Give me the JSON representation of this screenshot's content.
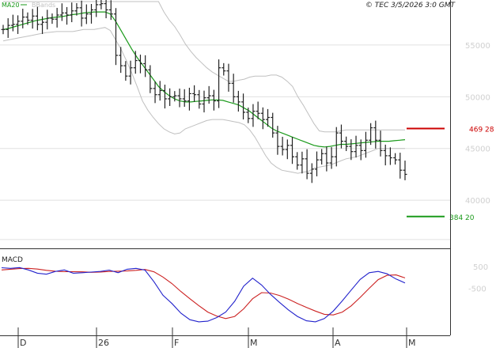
{
  "header": {
    "legend": [
      {
        "label": "MA20",
        "color": "#1a9a1a"
      },
      {
        "label": "BBands",
        "color": "#c0c0c0"
      }
    ],
    "copyright": "© TEC 3/5/2026 3:0 GMT"
  },
  "macd_panel": {
    "label": "MACD",
    "ticks": [
      "500",
      "-500"
    ]
  },
  "colors": {
    "price_bar": "#222222",
    "ma20": "#1a9a1a",
    "bbands": "#c0c0c0",
    "grid": "#e0e0e0",
    "macd_line": "#2222cc",
    "signal_line": "#cc2222",
    "resistance": "#cc0000",
    "support": "#1a9a1a"
  },
  "chart_data": [
    {
      "type": "ohlc",
      "y_ticks": [
        "55000",
        "50000",
        "45000",
        "40000"
      ],
      "ylim": [
        35500,
        59200
      ],
      "x_ticks": [
        "D",
        "26",
        "F",
        "M",
        "A",
        "M"
      ],
      "levels": [
        {
          "name": "resistance",
          "value": 46928,
          "label": "469 28"
        },
        {
          "name": "support",
          "value": 38420,
          "label": "384 20"
        }
      ],
      "closes": [
        56500,
        56900,
        57000,
        57300,
        57700,
        57400,
        57800,
        57000,
        57200,
        57600,
        57500,
        57900,
        58100,
        57900,
        58300,
        58600,
        57600,
        58000,
        58400,
        58900,
        59000,
        58400,
        58000,
        54000,
        53000,
        52000,
        52800,
        53500,
        53200,
        52600,
        50800,
        50200,
        50600,
        49800,
        50000,
        50100,
        49800,
        49600,
        50300,
        50200,
        49300,
        49900,
        50100,
        49600,
        52800,
        52500,
        51300,
        50000,
        49500,
        48500,
        47900,
        48600,
        48400,
        47800,
        48000,
        46500,
        45200,
        44900,
        45300,
        44200,
        43400,
        44000,
        42600,
        43000,
        43900,
        44500,
        43600,
        44200,
        46500,
        45700,
        45200,
        44700,
        45300,
        44800,
        45800,
        47000,
        45800,
        44800,
        44300,
        44100,
        43900,
        42900,
        42500
      ],
      "ma20": [
        56500,
        56600,
        56750,
        56900,
        57050,
        57200,
        57350,
        57450,
        57550,
        57650,
        57700,
        57750,
        57850,
        57950,
        58000,
        58100,
        58150,
        58200,
        58200,
        58200,
        58000,
        57300,
        56400,
        55500,
        54600,
        53800,
        53100,
        52400,
        51700,
        51000,
        50500,
        50100,
        49800,
        49600,
        49500,
        49500,
        49550,
        49600,
        49650,
        49700,
        49700,
        49650,
        49500,
        49350,
        49200,
        48900,
        48600,
        48200,
        47800,
        47400,
        47000,
        46700,
        46500,
        46300,
        46100,
        45900,
        45700,
        45500,
        45300,
        45200,
        45150,
        45200,
        45300,
        45400,
        45400,
        45450,
        45500,
        45550,
        45600,
        45650,
        45700,
        45700,
        45700,
        45750,
        45800,
        45850
      ],
      "bb_upper": [
        59200,
        59200,
        59200,
        59200,
        59200,
        59200,
        59200,
        59200,
        59200,
        59200,
        59200,
        59200,
        59200,
        59200,
        59200,
        59200,
        59200,
        59200,
        59200,
        59200,
        59200,
        59200,
        59200,
        59200,
        59200,
        59200,
        59200,
        59200,
        59200,
        59200,
        58200,
        57400,
        56800,
        56000,
        55100,
        54400,
        53800,
        53300,
        52800,
        52400,
        52100,
        51800,
        51500,
        51500,
        51600,
        51700,
        51900,
        52000,
        52000,
        52000,
        52100,
        52100,
        51900,
        51500,
        51000,
        50000,
        49200,
        48300,
        47400,
        46700,
        46600,
        46600,
        46600,
        46700,
        46800,
        46800,
        46800,
        46800,
        46800,
        46800,
        46800,
        46800,
        46800,
        46800,
        46800,
        46800
      ],
      "bb_lower": [
        55400,
        55500,
        55600,
        55700,
        55800,
        55900,
        56000,
        56100,
        56200,
        56250,
        56300,
        56300,
        56300,
        56300,
        56400,
        56500,
        56500,
        56500,
        56600,
        56700,
        56400,
        55500,
        54600,
        53500,
        52300,
        51000,
        49600,
        48700,
        48000,
        47400,
        46900,
        46600,
        46400,
        46500,
        46900,
        47100,
        47300,
        47500,
        47700,
        47800,
        47800,
        47800,
        47700,
        47600,
        47500,
        47300,
        46800,
        46100,
        45200,
        44300,
        43600,
        43200,
        42900,
        42800,
        42700,
        42600,
        42700,
        42800,
        43100,
        43200,
        43300,
        43400,
        43600,
        43800,
        44000,
        44100,
        44200,
        44400,
        44600,
        44800,
        45000,
        45000,
        45000,
        45000,
        45000,
        45000
      ]
    },
    {
      "type": "line",
      "name": "MACD",
      "ylim": [
        -2600,
        1200
      ],
      "series": [
        {
          "name": "macd",
          "values": [
            450,
            420,
            460,
            350,
            200,
            150,
            280,
            350,
            200,
            220,
            250,
            280,
            340,
            220,
            380,
            420,
            340,
            -200,
            -820,
            -1200,
            -1650,
            -1950,
            -2050,
            -2020,
            -1850,
            -1600,
            -1100,
            -400,
            -30,
            -350,
            -780,
            -1150,
            -1500,
            -1800,
            -2000,
            -2050,
            -1900,
            -1550,
            -1080,
            -580,
            -90,
            220,
            280,
            170,
            -70,
            -250
          ]
        },
        {
          "name": "signal",
          "values": [
            350,
            380,
            410,
            420,
            390,
            330,
            290,
            270,
            270,
            260,
            240,
            250,
            280,
            290,
            300,
            330,
            370,
            260,
            20,
            -280,
            -650,
            -980,
            -1300,
            -1600,
            -1780,
            -1900,
            -1800,
            -1450,
            -980,
            -700,
            -720,
            -830,
            -1000,
            -1200,
            -1380,
            -1550,
            -1700,
            -1730,
            -1600,
            -1310,
            -920,
            -500,
            -100,
            100,
            120,
            -20
          ]
        }
      ]
    }
  ]
}
